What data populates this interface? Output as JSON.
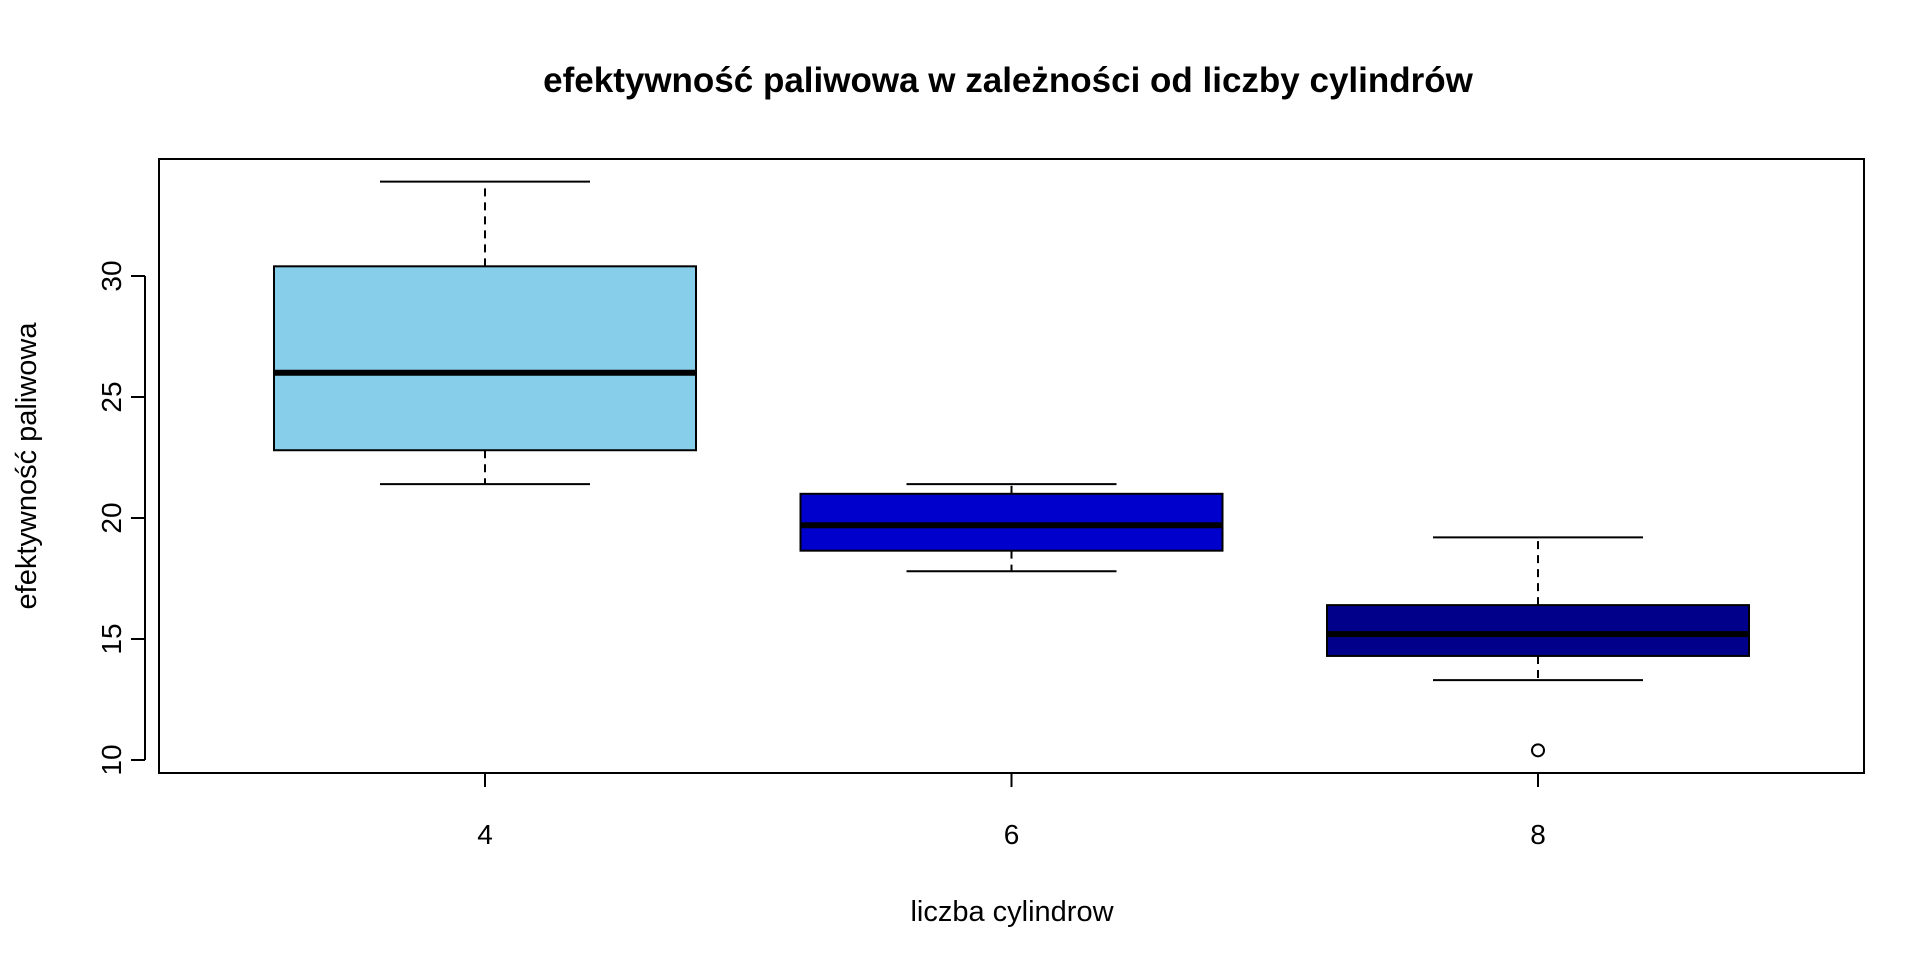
{
  "chart_data": {
    "type": "boxplot",
    "title": "efektywność paliwowa w zależności od liczby cylindrów",
    "xlabel": "liczba cylindrow",
    "ylabel": "efektywność paliwowa",
    "categories": [
      "4",
      "6",
      "8"
    ],
    "ylim": [
      9.6,
      35.0
    ],
    "yticks": [
      10,
      15,
      20,
      25,
      30
    ],
    "grid": false,
    "legend": "none",
    "boxes": [
      {
        "category": "4",
        "whisker_low": 21.4,
        "q1": 22.8,
        "median": 26.0,
        "q3": 30.4,
        "whisker_high": 33.9,
        "outliers": [],
        "color": "#87CEEB"
      },
      {
        "category": "6",
        "whisker_low": 17.8,
        "q1": 18.65,
        "median": 19.7,
        "q3": 21.0,
        "whisker_high": 21.4,
        "outliers": [],
        "color": "#0000CD"
      },
      {
        "category": "8",
        "whisker_low": 13.3,
        "q1": 14.3,
        "median": 15.2,
        "q3": 16.4,
        "whisker_high": 19.2,
        "outliers": [
          10.4
        ],
        "color": "#00008B"
      }
    ]
  }
}
